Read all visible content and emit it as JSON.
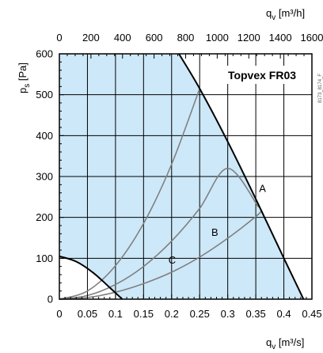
{
  "chart_data": {
    "type": "line",
    "title": "Topvex FR03",
    "side_code": "8173_8174_F",
    "xlabel": {
      "main": "q",
      "sub": "v",
      "unit": " [m³/s]"
    },
    "ylabel": {
      "main": "p",
      "sub": "s",
      "unit": " [Pa]"
    },
    "x2label": {
      "main": "q",
      "sub": "v",
      "unit": " [m³/h]"
    },
    "xlim": [
      0,
      0.45
    ],
    "ylim": [
      0,
      600
    ],
    "x2lim": [
      0,
      1600
    ],
    "x_ticks": [
      0,
      0.05,
      0.1,
      0.15,
      0.2,
      0.25,
      0.3,
      0.35,
      0.4,
      0.45
    ],
    "x_tick_labels": [
      "0",
      "0.05",
      "0.1",
      "0.15",
      "0.2",
      "0.25",
      "0.3",
      "0.35",
      "0.4",
      "0.45"
    ],
    "y_ticks": [
      0,
      100,
      200,
      300,
      400,
      500,
      600
    ],
    "y_tick_labels": [
      "0",
      "100",
      "200",
      "300",
      "400",
      "500",
      "600"
    ],
    "x2_ticks": [
      0,
      200,
      400,
      600,
      800,
      1000,
      1200,
      1400,
      1600
    ],
    "x2_tick_labels": [
      "0",
      "200",
      "400",
      "600",
      "800",
      "1000",
      "1200",
      "1400",
      "1600"
    ],
    "grid": true,
    "operating_area": {
      "color": "#cde8f8",
      "upper_limit": [
        {
          "x": 0.213,
          "y": 600
        },
        {
          "x": 0.25,
          "y": 515
        },
        {
          "x": 0.3,
          "y": 385
        },
        {
          "x": 0.35,
          "y": 245
        },
        {
          "x": 0.4,
          "y": 100
        },
        {
          "x": 0.435,
          "y": 0
        }
      ],
      "lower_limit": [
        {
          "x": 0,
          "y": 105
        },
        {
          "x": 0.03,
          "y": 92
        },
        {
          "x": 0.06,
          "y": 65
        },
        {
          "x": 0.09,
          "y": 28
        },
        {
          "x": 0.112,
          "y": 0
        }
      ]
    },
    "system_curves": [
      {
        "label": "A",
        "color": "#808080",
        "points": [
          {
            "x": 0,
            "y": 0
          },
          {
            "x": 0.05,
            "y": 20
          },
          {
            "x": 0.1,
            "y": 82
          },
          {
            "x": 0.15,
            "y": 185
          },
          {
            "x": 0.2,
            "y": 330
          },
          {
            "x": 0.25,
            "y": 515
          }
        ]
      },
      {
        "label": "B",
        "color": "#808080",
        "points": [
          {
            "x": 0,
            "y": 0
          },
          {
            "x": 0.05,
            "y": 9
          },
          {
            "x": 0.1,
            "y": 36
          },
          {
            "x": 0.15,
            "y": 80
          },
          {
            "x": 0.2,
            "y": 142
          },
          {
            "x": 0.25,
            "y": 222
          },
          {
            "x": 0.3,
            "y": 320
          },
          {
            "x": 0.355,
            "y": 225
          }
        ]
      },
      {
        "label": "C",
        "color": "#808080",
        "points": [
          {
            "x": 0,
            "y": 0
          },
          {
            "x": 0.05,
            "y": 4
          },
          {
            "x": 0.1,
            "y": 17
          },
          {
            "x": 0.15,
            "y": 38
          },
          {
            "x": 0.2,
            "y": 66
          },
          {
            "x": 0.25,
            "y": 103
          },
          {
            "x": 0.3,
            "y": 149
          },
          {
            "x": 0.35,
            "y": 202
          },
          {
            "x": 0.36,
            "y": 216
          }
        ]
      }
    ],
    "labels": [
      {
        "text": "A",
        "x": 0.362,
        "y": 262
      },
      {
        "text": "B",
        "x": 0.277,
        "y": 155
      },
      {
        "text": "C",
        "x": 0.201,
        "y": 87
      }
    ]
  }
}
